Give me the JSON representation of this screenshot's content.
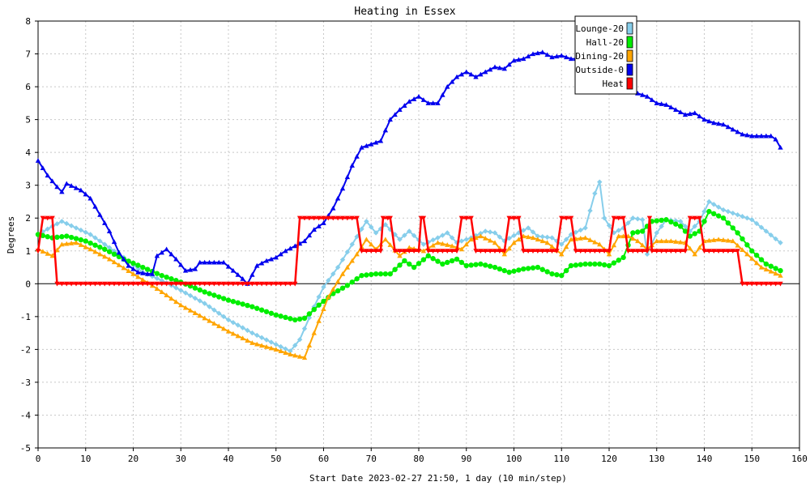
{
  "chart_data": {
    "type": "line",
    "title": "Heating in Essex",
    "xlabel": "Start Date 2023-02-27 21:50, 1 day (10 min/step)",
    "ylabel": "Degrees",
    "xlim": [
      0,
      160
    ],
    "ylim": [
      -5,
      8
    ],
    "xticks": [
      0,
      10,
      20,
      30,
      40,
      50,
      60,
      70,
      80,
      90,
      100,
      110,
      120,
      130,
      140,
      150,
      160
    ],
    "yticks": [
      -5,
      -4,
      -3,
      -2,
      -1,
      0,
      1,
      2,
      3,
      4,
      5,
      6,
      7,
      8
    ],
    "grid": true,
    "legend_position": "top-right",
    "series": [
      {
        "name": "Lounge-20",
        "color": "#87ceeb",
        "marker": "diamond",
        "points": [
          [
            0,
            1.5
          ],
          [
            3,
            1.75
          ],
          [
            5,
            1.9
          ],
          [
            8,
            1.7
          ],
          [
            11,
            1.5
          ],
          [
            14,
            1.2
          ],
          [
            18,
            0.8
          ],
          [
            22,
            0.35
          ],
          [
            26,
            0.1
          ],
          [
            30,
            -0.2
          ],
          [
            35,
            -0.6
          ],
          [
            40,
            -1.1
          ],
          [
            45,
            -1.5
          ],
          [
            50,
            -1.85
          ],
          [
            53,
            -2.05
          ],
          [
            55,
            -1.7
          ],
          [
            58,
            -0.7
          ],
          [
            60,
            -0.1
          ],
          [
            63,
            0.5
          ],
          [
            66,
            1.2
          ],
          [
            69,
            1.9
          ],
          [
            71,
            1.55
          ],
          [
            73,
            1.8
          ],
          [
            76,
            1.35
          ],
          [
            78,
            1.6
          ],
          [
            81,
            1.2
          ],
          [
            84,
            1.4
          ],
          [
            86,
            1.55
          ],
          [
            88,
            1.25
          ],
          [
            91,
            1.4
          ],
          [
            94,
            1.6
          ],
          [
            96,
            1.55
          ],
          [
            98,
            1.3
          ],
          [
            101,
            1.55
          ],
          [
            103,
            1.7
          ],
          [
            105,
            1.45
          ],
          [
            108,
            1.4
          ],
          [
            110,
            1.2
          ],
          [
            112,
            1.5
          ],
          [
            115,
            1.7
          ],
          [
            117,
            2.75
          ],
          [
            118,
            3.1
          ],
          [
            119,
            2.0
          ],
          [
            121,
            1.55
          ],
          [
            123,
            1.7
          ],
          [
            125,
            2.0
          ],
          [
            127,
            1.95
          ],
          [
            128,
            0.9
          ],
          [
            130,
            1.55
          ],
          [
            132,
            1.95
          ],
          [
            135,
            1.9
          ],
          [
            137,
            1.6
          ],
          [
            139,
            1.9
          ],
          [
            141,
            2.5
          ],
          [
            144,
            2.25
          ],
          [
            147,
            2.1
          ],
          [
            150,
            1.95
          ],
          [
            153,
            1.6
          ],
          [
            156,
            1.25
          ]
        ]
      },
      {
        "name": "Hall-20",
        "color": "#00ee00",
        "marker": "circle",
        "points": [
          [
            0,
            1.5
          ],
          [
            3,
            1.4
          ],
          [
            6,
            1.45
          ],
          [
            10,
            1.3
          ],
          [
            14,
            1.05
          ],
          [
            18,
            0.75
          ],
          [
            22,
            0.5
          ],
          [
            26,
            0.25
          ],
          [
            30,
            0.05
          ],
          [
            35,
            -0.25
          ],
          [
            40,
            -0.5
          ],
          [
            45,
            -0.7
          ],
          [
            50,
            -0.95
          ],
          [
            54,
            -1.1
          ],
          [
            56,
            -1.05
          ],
          [
            59,
            -0.65
          ],
          [
            62,
            -0.3
          ],
          [
            65,
            -0.05
          ],
          [
            68,
            0.25
          ],
          [
            71,
            0.3
          ],
          [
            74,
            0.3
          ],
          [
            77,
            0.7
          ],
          [
            79,
            0.5
          ],
          [
            82,
            0.85
          ],
          [
            85,
            0.6
          ],
          [
            88,
            0.75
          ],
          [
            90,
            0.55
          ],
          [
            93,
            0.6
          ],
          [
            96,
            0.5
          ],
          [
            99,
            0.35
          ],
          [
            102,
            0.45
          ],
          [
            105,
            0.5
          ],
          [
            108,
            0.3
          ],
          [
            110,
            0.25
          ],
          [
            112,
            0.55
          ],
          [
            115,
            0.6
          ],
          [
            118,
            0.6
          ],
          [
            120,
            0.55
          ],
          [
            123,
            0.8
          ],
          [
            125,
            1.55
          ],
          [
            127,
            1.6
          ],
          [
            129,
            1.9
          ],
          [
            132,
            1.95
          ],
          [
            135,
            1.75
          ],
          [
            137,
            1.45
          ],
          [
            139,
            1.6
          ],
          [
            141,
            2.2
          ],
          [
            144,
            2.0
          ],
          [
            147,
            1.55
          ],
          [
            150,
            1.0
          ],
          [
            153,
            0.6
          ],
          [
            156,
            0.4
          ]
        ]
      },
      {
        "name": "Dining-20",
        "color": "#ffa500",
        "marker": "triangle",
        "points": [
          [
            0,
            1.05
          ],
          [
            3,
            0.85
          ],
          [
            5,
            1.2
          ],
          [
            8,
            1.25
          ],
          [
            11,
            1.05
          ],
          [
            15,
            0.75
          ],
          [
            20,
            0.3
          ],
          [
            25,
            -0.15
          ],
          [
            30,
            -0.65
          ],
          [
            35,
            -1.05
          ],
          [
            40,
            -1.45
          ],
          [
            45,
            -1.8
          ],
          [
            50,
            -2.0
          ],
          [
            53,
            -2.15
          ],
          [
            56,
            -2.25
          ],
          [
            58,
            -1.5
          ],
          [
            61,
            -0.4
          ],
          [
            64,
            0.3
          ],
          [
            67,
            0.9
          ],
          [
            69,
            1.35
          ],
          [
            71,
            1.05
          ],
          [
            73,
            1.35
          ],
          [
            76,
            0.85
          ],
          [
            78,
            1.1
          ],
          [
            81,
            1.0
          ],
          [
            84,
            1.25
          ],
          [
            87,
            1.15
          ],
          [
            89,
            1.05
          ],
          [
            91,
            1.35
          ],
          [
            93,
            1.45
          ],
          [
            96,
            1.25
          ],
          [
            98,
            0.9
          ],
          [
            100,
            1.25
          ],
          [
            102,
            1.45
          ],
          [
            104,
            1.4
          ],
          [
            107,
            1.25
          ],
          [
            110,
            0.9
          ],
          [
            112,
            1.35
          ],
          [
            115,
            1.4
          ],
          [
            118,
            1.2
          ],
          [
            120,
            0.9
          ],
          [
            122,
            1.45
          ],
          [
            124,
            1.45
          ],
          [
            126,
            1.3
          ],
          [
            128,
            1.05
          ],
          [
            130,
            1.3
          ],
          [
            133,
            1.3
          ],
          [
            136,
            1.25
          ],
          [
            138,
            0.9
          ],
          [
            140,
            1.3
          ],
          [
            143,
            1.35
          ],
          [
            146,
            1.3
          ],
          [
            149,
            0.9
          ],
          [
            152,
            0.5
          ],
          [
            156,
            0.25
          ]
        ]
      },
      {
        "name": "Outside-0",
        "color": "#0000ee",
        "marker": "triangle",
        "points": [
          [
            0,
            3.75
          ],
          [
            2,
            3.3
          ],
          [
            4,
            2.95
          ],
          [
            5,
            2.8
          ],
          [
            6,
            3.05
          ],
          [
            9,
            2.85
          ],
          [
            11,
            2.6
          ],
          [
            13,
            2.1
          ],
          [
            15,
            1.6
          ],
          [
            17,
            0.95
          ],
          [
            19,
            0.55
          ],
          [
            21,
            0.35
          ],
          [
            23,
            0.3
          ],
          [
            24,
            0.3
          ],
          [
            25,
            0.85
          ],
          [
            27,
            1.05
          ],
          [
            29,
            0.75
          ],
          [
            31,
            0.4
          ],
          [
            33,
            0.45
          ],
          [
            34,
            0.65
          ],
          [
            36,
            0.65
          ],
          [
            39,
            0.65
          ],
          [
            41,
            0.4
          ],
          [
            43,
            0.15
          ],
          [
            44,
            0.0
          ],
          [
            46,
            0.55
          ],
          [
            48,
            0.7
          ],
          [
            50,
            0.8
          ],
          [
            52,
            1.0
          ],
          [
            54,
            1.15
          ],
          [
            56,
            1.3
          ],
          [
            58,
            1.65
          ],
          [
            60,
            1.85
          ],
          [
            62,
            2.3
          ],
          [
            64,
            2.9
          ],
          [
            66,
            3.6
          ],
          [
            68,
            4.15
          ],
          [
            70,
            4.25
          ],
          [
            72,
            4.35
          ],
          [
            74,
            5.0
          ],
          [
            76,
            5.3
          ],
          [
            78,
            5.55
          ],
          [
            80,
            5.7
          ],
          [
            82,
            5.5
          ],
          [
            84,
            5.5
          ],
          [
            86,
            6.0
          ],
          [
            88,
            6.3
          ],
          [
            90,
            6.45
          ],
          [
            92,
            6.3
          ],
          [
            94,
            6.45
          ],
          [
            96,
            6.6
          ],
          [
            98,
            6.55
          ],
          [
            100,
            6.8
          ],
          [
            102,
            6.85
          ],
          [
            104,
            7.0
          ],
          [
            106,
            7.05
          ],
          [
            108,
            6.9
          ],
          [
            110,
            6.95
          ],
          [
            112,
            6.85
          ],
          [
            114,
            6.85
          ],
          [
            116,
            6.7
          ],
          [
            118,
            6.4
          ],
          [
            120,
            6.2
          ],
          [
            122,
            6.0
          ],
          [
            124,
            5.9
          ],
          [
            126,
            5.8
          ],
          [
            128,
            5.7
          ],
          [
            130,
            5.5
          ],
          [
            132,
            5.45
          ],
          [
            134,
            5.3
          ],
          [
            136,
            5.15
          ],
          [
            138,
            5.2
          ],
          [
            140,
            5.0
          ],
          [
            142,
            4.9
          ],
          [
            144,
            4.85
          ],
          [
            146,
            4.7
          ],
          [
            148,
            4.55
          ],
          [
            150,
            4.5
          ],
          [
            152,
            4.5
          ],
          [
            154,
            4.5
          ],
          [
            155,
            4.4
          ],
          [
            156,
            4.15
          ]
        ]
      },
      {
        "name": "Heat",
        "color": "#ff0000",
        "marker": "triangle-down",
        "points": [
          [
            0,
            1
          ],
          [
            1,
            2
          ],
          [
            3,
            2
          ],
          [
            4,
            0
          ],
          [
            54,
            0
          ],
          [
            55,
            2
          ],
          [
            67,
            2
          ],
          [
            68,
            1
          ],
          [
            72,
            1
          ],
          [
            72.5,
            2
          ],
          [
            74,
            2
          ],
          [
            75,
            1
          ],
          [
            80,
            1
          ],
          [
            80.5,
            2
          ],
          [
            81,
            2
          ],
          [
            82,
            1
          ],
          [
            88,
            1
          ],
          [
            89,
            2
          ],
          [
            91,
            2
          ],
          [
            92,
            1
          ],
          [
            98,
            1
          ],
          [
            99,
            2
          ],
          [
            101,
            2
          ],
          [
            102,
            1
          ],
          [
            109,
            1
          ],
          [
            110,
            2
          ],
          [
            112,
            2
          ],
          [
            113,
            1
          ],
          [
            120,
            1
          ],
          [
            121,
            2
          ],
          [
            123,
            2
          ],
          [
            124,
            1
          ],
          [
            128,
            1
          ],
          [
            128.5,
            2
          ],
          [
            129,
            1
          ],
          [
            136,
            1
          ],
          [
            137,
            2
          ],
          [
            139,
            2
          ],
          [
            140,
            1
          ],
          [
            147,
            1
          ],
          [
            148,
            0
          ],
          [
            156,
            0
          ]
        ]
      }
    ]
  }
}
